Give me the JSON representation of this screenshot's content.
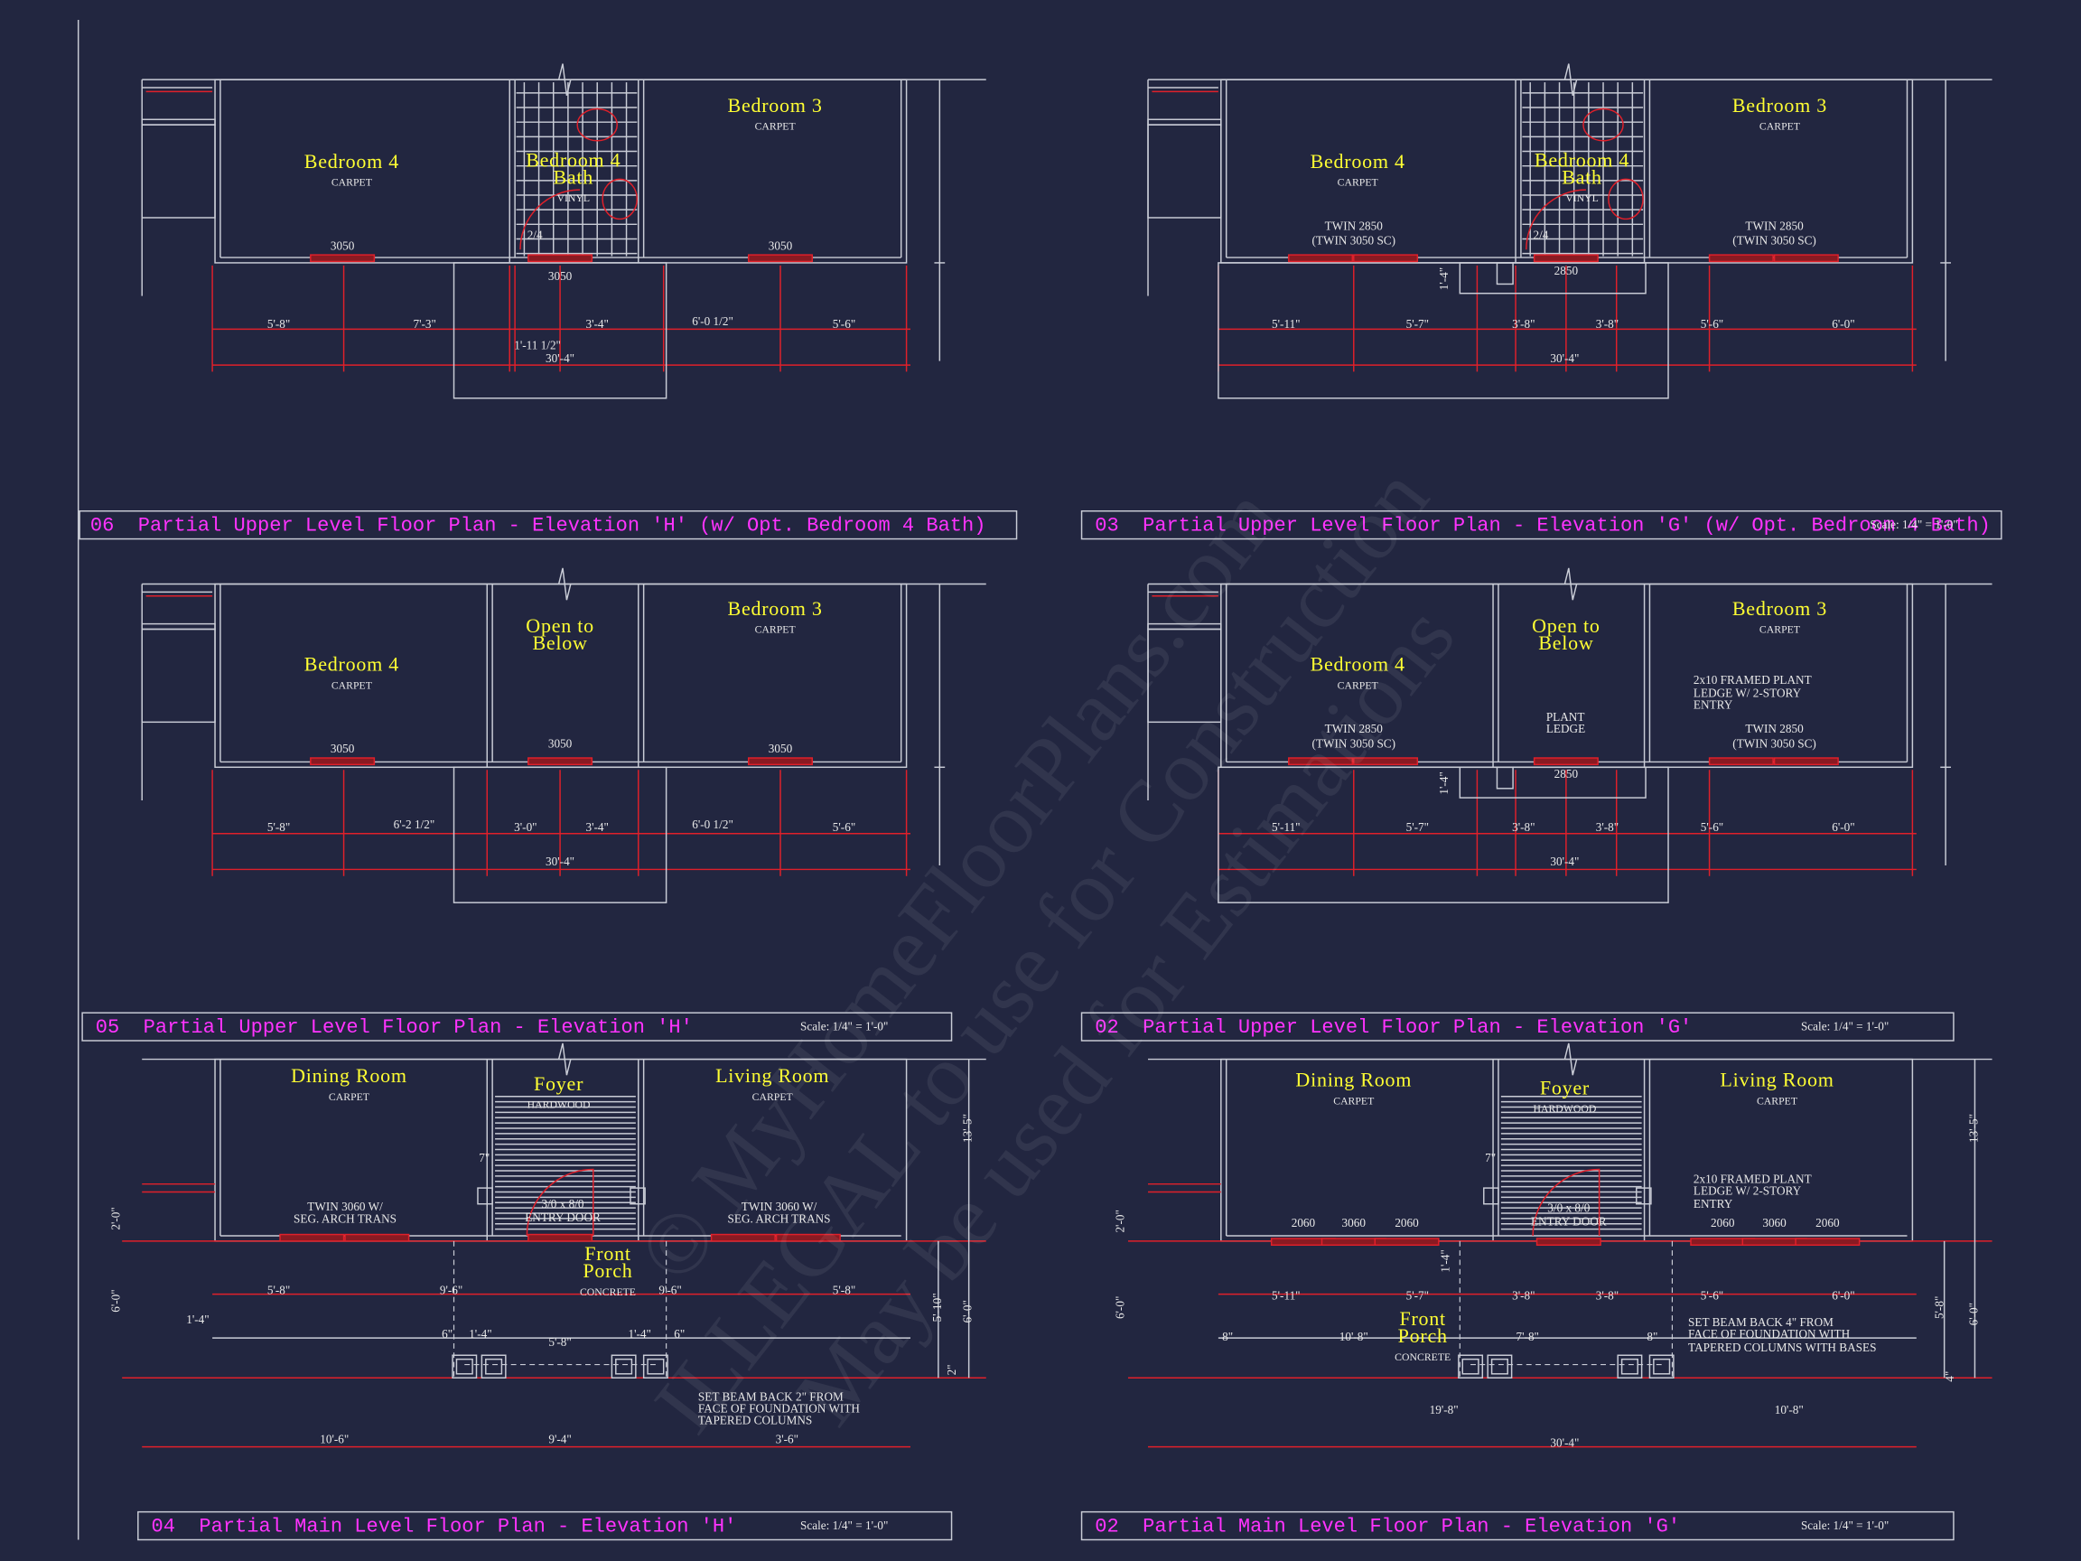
{
  "watermark": [
    "© MyHomeFloorPlans.com",
    "ILLEGAL to use for Construction",
    "May be used for Estimations"
  ],
  "panels": [
    {
      "title": "06  Partial Upper Level Floor Plan - Elevation 'H' (w/ Opt. Bedroom 4 Bath)",
      "rooms": [
        {
          "name": [
            "Bedroom 4"
          ],
          "floor": "CARPET"
        },
        {
          "name": [
            "Bedroom 4",
            "Bath"
          ],
          "floor": "VINYL"
        },
        {
          "name": [
            "Bedroom 3"
          ],
          "floor": "CARPET"
        }
      ],
      "labels": [
        "3050",
        "2/4",
        "3050",
        "3050",
        "5'-8\"",
        "7'-3\"",
        "3'-4\"",
        "6'-0 1/2\"",
        "5'-6\"",
        "1'-11 1/2\"",
        "30'-4\""
      ]
    },
    {
      "title": "03  Partial Upper Level Floor Plan - Elevation 'G' (w/ Opt. Bedroom 4 Bath)",
      "scale": "Scale: 1/4\" = 1'-0\"",
      "rooms": [
        {
          "name": [
            "Bedroom 4"
          ],
          "floor": "CARPET"
        },
        {
          "name": [
            "Bedroom 4",
            "Bath"
          ],
          "floor": "VINYL"
        },
        {
          "name": [
            "Bedroom 3"
          ],
          "floor": "CARPET"
        }
      ],
      "labels": [
        "TWIN 2850",
        "(TWIN 3050 SC)",
        "2/4",
        "2850",
        "TWIN 2850",
        "(TWIN 3050 SC)",
        "1'-4\"",
        "5'-11\"",
        "5'-7\"",
        "3'-8\"",
        "3'-8\"",
        "5'-6\"",
        "6'-0\"",
        "30'-4\""
      ]
    },
    {
      "title": "05  Partial Upper Level Floor Plan - Elevation 'H'",
      "scale": "Scale: 1/4\" = 1'-0\"",
      "rooms": [
        {
          "name": [
            "Bedroom 4"
          ],
          "floor": "CARPET"
        },
        {
          "name": [
            "Open to",
            "Below"
          ]
        },
        {
          "name": [
            "Bedroom 3"
          ],
          "floor": "CARPET"
        }
      ],
      "labels": [
        "3050",
        "3050",
        "3050",
        "5'-8\"",
        "6'-2 1/2\"",
        "3'-0\"",
        "3'-4\"",
        "6'-0 1/2\"",
        "5'-6\"",
        "30'-4\""
      ]
    },
    {
      "title": "02  Partial Upper Level Floor Plan - Elevation 'G'",
      "scale": "Scale: 1/4\" = 1'-0\"",
      "rooms": [
        {
          "name": [
            "Bedroom 4"
          ],
          "floor": "CARPET"
        },
        {
          "name": [
            "Open to",
            "Below"
          ]
        },
        {
          "name": [
            "Bedroom 3"
          ],
          "floor": "CARPET"
        }
      ],
      "labels": [
        "TWIN 2850",
        "(TWIN 3050 SC)",
        "PLANT",
        "LEDGE",
        "2850",
        "2x10 FRAMED PLANT",
        "LEDGE W/ 2-STORY",
        "ENTRY",
        "TWIN 2850",
        "(TWIN 3050 SC)",
        "1'-4\"",
        "5'-11\"",
        "5'-7\"",
        "3'-8\"",
        "3'-8\"",
        "5'-6\"",
        "6'-0\"",
        "30'-4\""
      ]
    },
    {
      "title": "04  Partial Main Level Floor Plan - Elevation 'H'",
      "scale": "Scale: 1/4\" = 1'-0\"",
      "rooms": [
        {
          "name": [
            "Dining Room"
          ],
          "floor": "CARPET"
        },
        {
          "name": [
            "Foyer"
          ],
          "floor": "HARDWOOD"
        },
        {
          "name": [
            "Living Room"
          ],
          "floor": "CARPET"
        },
        {
          "name": [
            "Front",
            "Porch"
          ],
          "floor": "CONCRETE"
        }
      ],
      "labels": [
        "TWIN 3060 W/",
        "SEG. ARCH TRANS",
        "3/0 x 8/0",
        "ENTRY DOOR",
        "TWIN 3060 W/",
        "SEG. ARCH TRANS",
        "7\"",
        "5'-8\"",
        "9'-6\"",
        "9'-6\"",
        "5'-8\"",
        "1'-4\"",
        "6\"",
        "1'-4\"",
        "1'-4\"",
        "6\"",
        "5'-8\"",
        "SET BEAM BACK 2\" FROM",
        "FACE OF FOUNDATION WITH",
        "TAPERED COLUMNS",
        "10'-6\"",
        "9'-4\"",
        "3'-6\"",
        "13'-5\"",
        "2'-0\"",
        "6'-0\"",
        "5'-10\"",
        "6'-0\"",
        "2\""
      ]
    },
    {
      "title": "02  Partial Main Level Floor Plan - Elevation 'G'",
      "scale": "Scale: 1/4\" = 1'-0\"",
      "rooms": [
        {
          "name": [
            "Dining Room"
          ],
          "floor": "CARPET"
        },
        {
          "name": [
            "Foyer"
          ],
          "floor": "HARDWOOD"
        },
        {
          "name": [
            "Living Room"
          ],
          "floor": "CARPET"
        },
        {
          "name": [
            "Front",
            "Porch"
          ],
          "floor": "CONCRETE"
        }
      ],
      "labels": [
        "2060",
        "3060",
        "2060",
        "3/0 x 8/0",
        "ENTRY DOOR",
        "2060",
        "3060",
        "2060",
        "2x10 FRAMED PLANT",
        "LEDGE W/ 2-STORY",
        "ENTRY",
        "7\"",
        "1'-4\"",
        "5'-11\"",
        "5'-7\"",
        "3'-8\"",
        "3'-8\"",
        "5'-6\"",
        "6'-0\"",
        "8\"",
        "10'-8\"",
        "7'-8\"",
        "8\"",
        "SET BEAM BACK 4\" FROM",
        "FACE OF FOUNDATION WITH",
        "TAPERED COLUMNS WITH BASES",
        "19'-8\"",
        "10'-8\"",
        "30'-4\"",
        "13'-5\"",
        "2'-0\"",
        "6'-0\"",
        "5'-8\"",
        "6'-0\"",
        "4\""
      ]
    }
  ]
}
